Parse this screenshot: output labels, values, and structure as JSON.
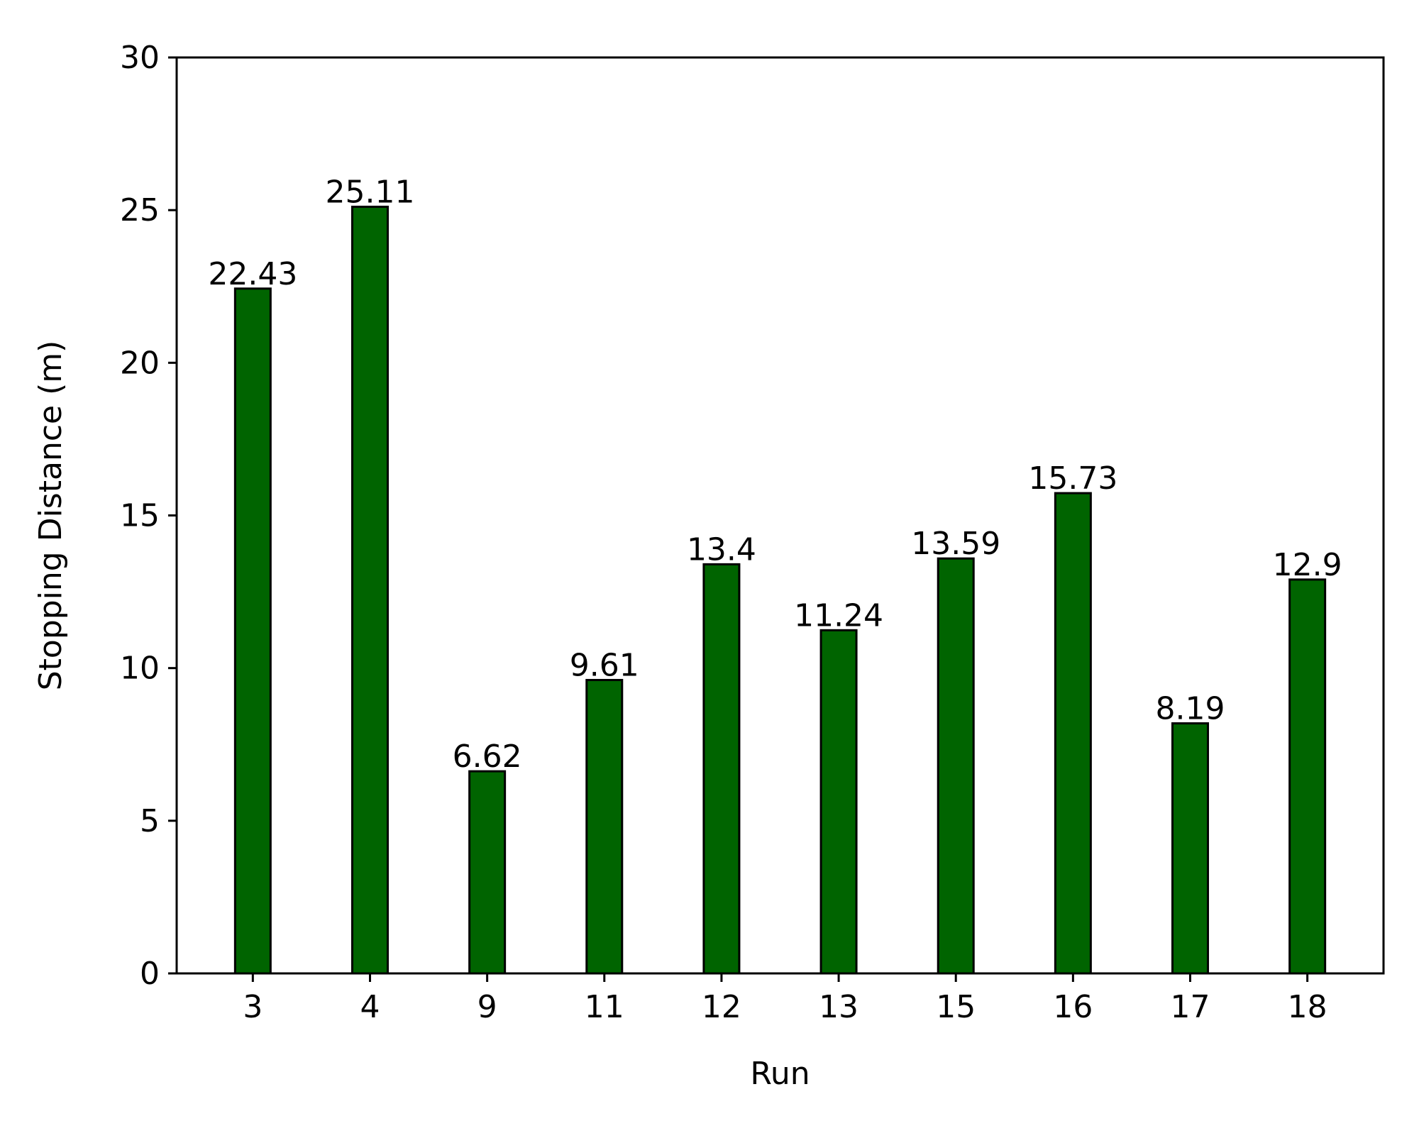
{
  "chart_data": {
    "type": "bar",
    "title": "",
    "xlabel": "Run",
    "ylabel": "Stopping Distance (m)",
    "categories": [
      "3",
      "4",
      "9",
      "11",
      "12",
      "13",
      "15",
      "16",
      "17",
      "18"
    ],
    "values": [
      22.43,
      25.11,
      6.62,
      9.61,
      13.4,
      11.24,
      13.59,
      15.73,
      8.19,
      12.9
    ],
    "value_labels": [
      "22.43",
      "25.11",
      "6.62",
      "9.61",
      "13.4",
      "11.24",
      "13.59",
      "15.73",
      "8.19",
      "12.9"
    ],
    "ylim": [
      0,
      30
    ],
    "yticks": [
      0,
      5,
      10,
      15,
      20,
      25,
      30
    ],
    "ytick_labels": [
      "0",
      "5",
      "10",
      "15",
      "20",
      "25",
      "30"
    ],
    "grid": false,
    "legend": "none",
    "colors": {
      "bar_fill": "#006400",
      "bar_edge": "#000000",
      "axis": "#000000",
      "background": "#ffffff"
    }
  }
}
